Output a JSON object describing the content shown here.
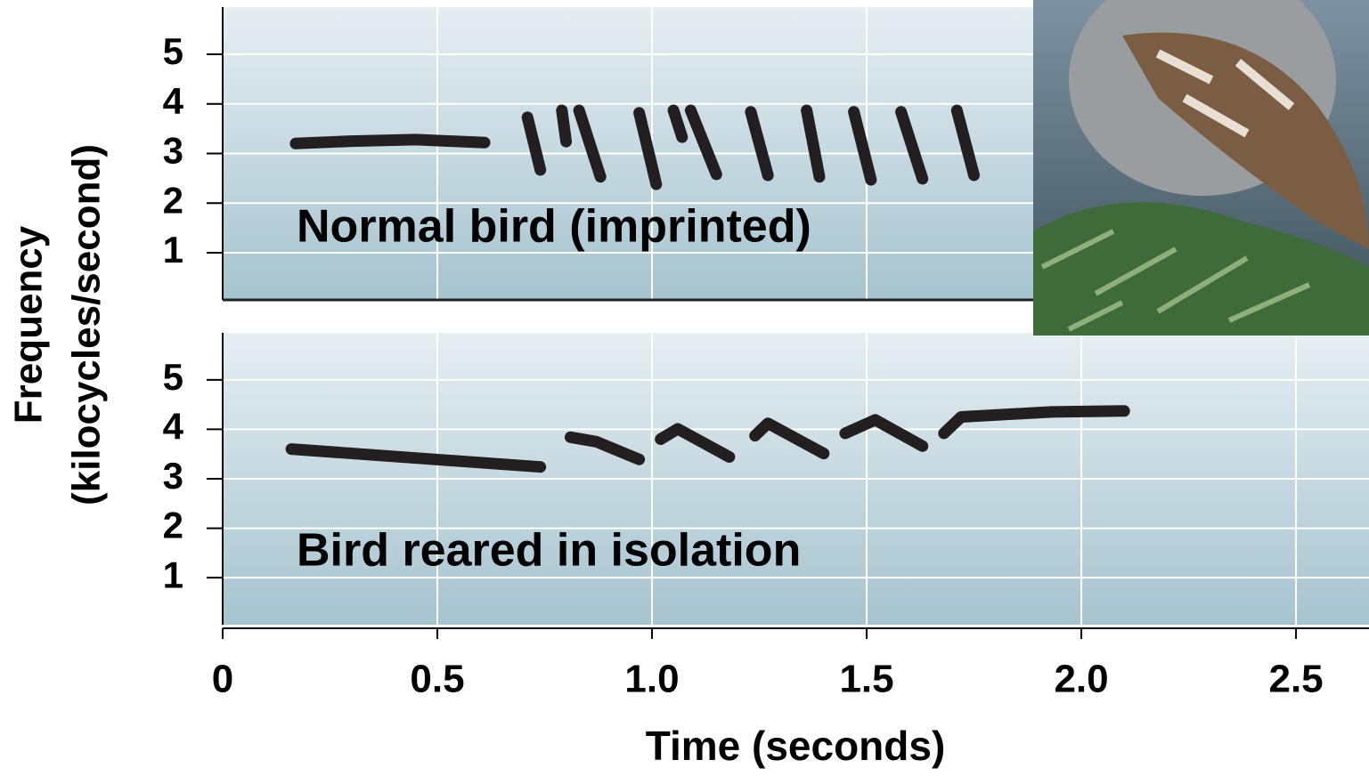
{
  "chart_data": [
    {
      "type": "line",
      "annotation": "Normal bird (imprinted)",
      "ylabel": [
        "Frequency",
        "(kilocycles/second)"
      ],
      "color": "#231f20",
      "grid": true,
      "xlim": [
        0,
        2.67
      ],
      "xticks": [
        0,
        0.5,
        1,
        1.5,
        2,
        2.5
      ],
      "ylim": [
        0.05,
        5.95
      ],
      "yticks": [
        1,
        2,
        3,
        4,
        5
      ],
      "series": [
        {
          "x": [
            0.17,
            0.3,
            0.45,
            0.61
          ],
          "values": [
            3.2,
            3.25,
            3.28,
            3.22
          ]
        },
        {
          "x": [
            0.71,
            0.74
          ],
          "values": [
            3.73,
            2.67
          ]
        },
        {
          "x": [
            0.79,
            0.8
          ],
          "values": [
            3.87,
            3.24
          ]
        },
        {
          "x": [
            0.83,
            0.88
          ],
          "values": [
            3.87,
            2.53
          ]
        },
        {
          "x": [
            0.97,
            1.01
          ],
          "values": [
            3.82,
            2.38
          ]
        },
        {
          "x": [
            1.05,
            1.07
          ],
          "values": [
            3.87,
            3.33
          ]
        },
        {
          "x": [
            1.09,
            1.15
          ],
          "values": [
            3.87,
            2.58
          ]
        },
        {
          "x": [
            1.23,
            1.27
          ],
          "values": [
            3.84,
            2.56
          ]
        },
        {
          "x": [
            1.36,
            1.39
          ],
          "values": [
            3.87,
            2.53
          ]
        },
        {
          "x": [
            1.47,
            1.51
          ],
          "values": [
            3.84,
            2.47
          ]
        },
        {
          "x": [
            1.58,
            1.63
          ],
          "values": [
            3.84,
            2.49
          ]
        },
        {
          "x": [
            1.71,
            1.75
          ],
          "values": [
            3.87,
            2.56
          ]
        }
      ]
    },
    {
      "type": "line",
      "annotation": "Bird reared in isolation",
      "xlabel": "Time (seconds)",
      "color": "#231f20",
      "grid": true,
      "xlim": [
        0,
        2.67
      ],
      "xticks": [
        0,
        0.5,
        {
          "value": 1,
          "label": "1.0"
        },
        1.5,
        {
          "value": 2,
          "label": "2.0"
        },
        2.5
      ],
      "ylim": [
        0.05,
        5.95
      ],
      "yticks": [
        1,
        2,
        3,
        4,
        5
      ],
      "series": [
        {
          "x": [
            0.16,
            0.45,
            0.74
          ],
          "values": [
            3.6,
            3.42,
            3.24
          ]
        },
        {
          "x": [
            0.81,
            0.87,
            0.97
          ],
          "values": [
            3.84,
            3.75,
            3.39
          ]
        },
        {
          "x": [
            1.02,
            1.06,
            1.18
          ],
          "values": [
            3.8,
            4.01,
            3.44
          ]
        },
        {
          "x": [
            1.24,
            1.27,
            1.4
          ],
          "values": [
            3.87,
            4.12,
            3.51
          ]
        },
        {
          "x": [
            1.45,
            1.52,
            1.63
          ],
          "values": [
            3.92,
            4.19,
            3.66
          ]
        },
        {
          "x": [
            1.68,
            1.72,
            1.93,
            2.1
          ],
          "values": [
            3.92,
            4.25,
            4.35,
            4.37
          ]
        }
      ]
    }
  ]
}
